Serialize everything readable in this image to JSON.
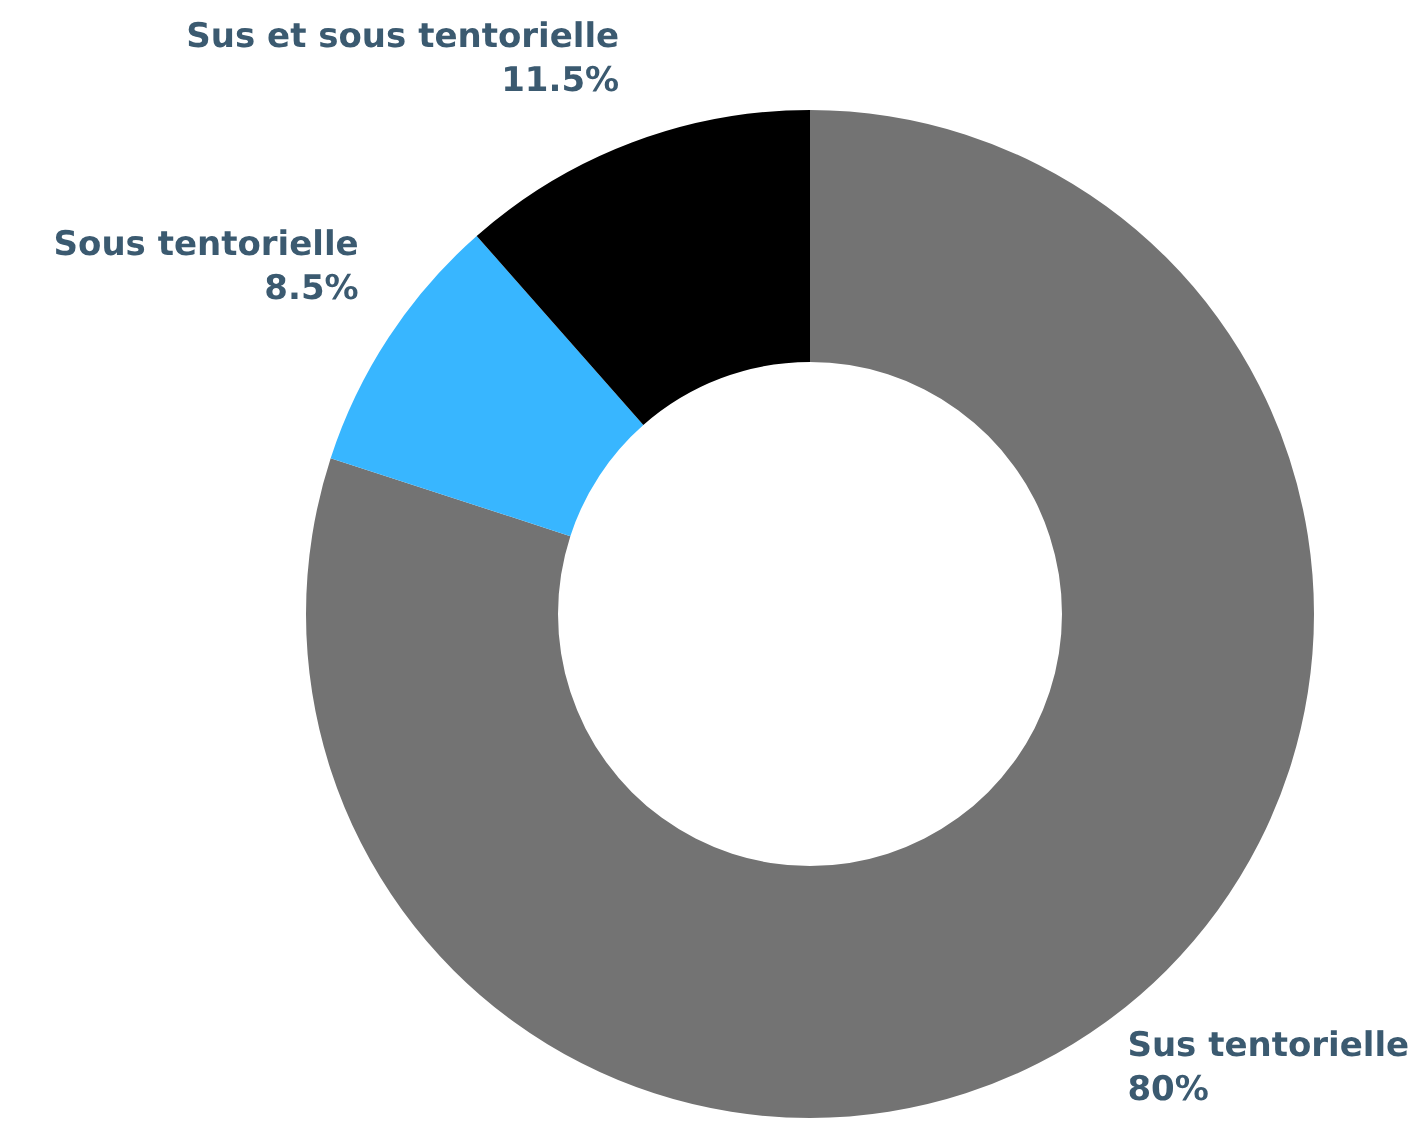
{
  "chart_data": {
    "type": "donut",
    "categories": [
      "Sus tentorielle",
      "Sous tentorielle",
      "Sus et sous tentorielle"
    ],
    "values": [
      80,
      8.5,
      11.5
    ],
    "colors": [
      "#737373",
      "#38b6ff",
      "#000000"
    ],
    "value_labels": [
      "80%",
      "8.5%",
      "11.5%"
    ],
    "legend": false
  }
}
